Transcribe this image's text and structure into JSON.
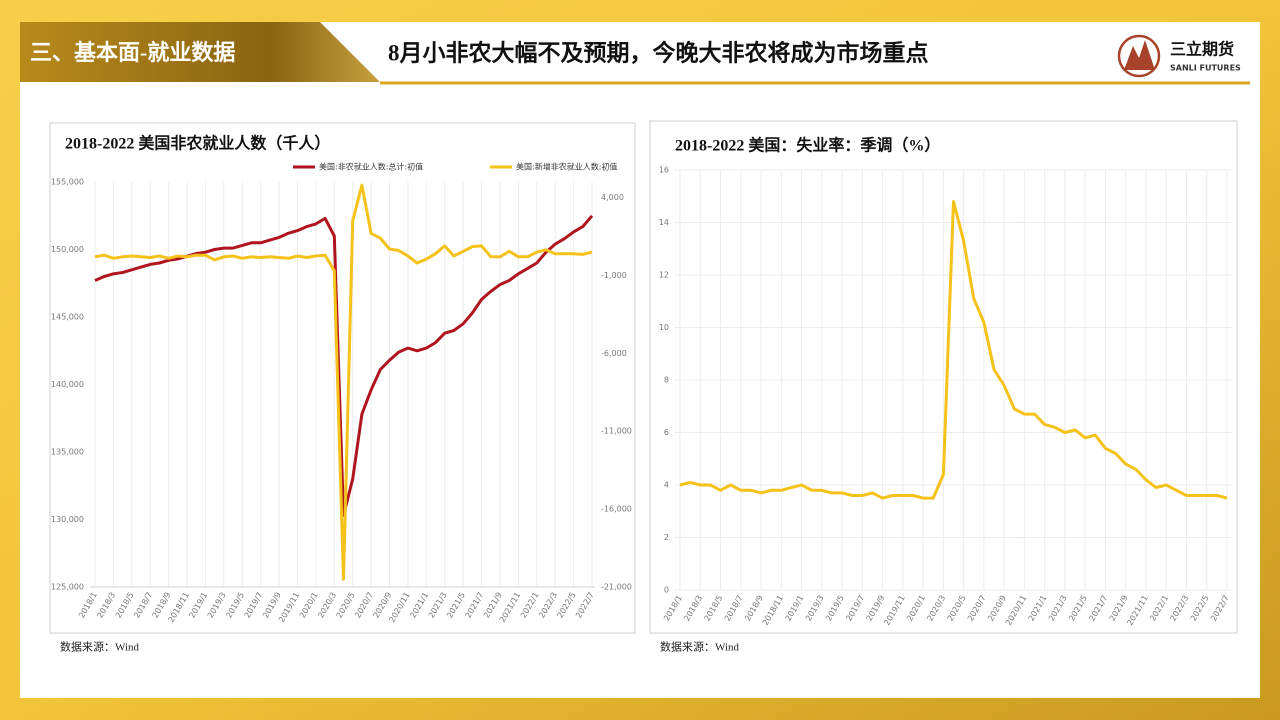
{
  "header": {
    "section": "三、基本面-就业数据",
    "title": "8月小非农大幅不及预期，今晚大非农将成为市场重点",
    "logo": "三立期货",
    "logo_en": "SANLI FUTURES"
  },
  "chart_data": [
    {
      "type": "line",
      "title": "2018-2022 美国非农就业人数（千人）",
      "source": "数据来源：Wind",
      "grid": [
        "x"
      ],
      "categories": [
        "2018/1",
        null,
        "2018/3",
        null,
        "2018/5",
        null,
        "2018/7",
        null,
        "2018/9",
        null,
        "2018/11",
        null,
        "2019/1",
        null,
        "2019/3",
        null,
        "2019/5",
        null,
        "2019/7",
        null,
        "2019/9",
        null,
        "2019/11",
        null,
        "2020/1",
        null,
        "2020/3",
        null,
        "2020/5",
        null,
        "2020/7",
        null,
        "2020/9",
        null,
        "2020/11",
        null,
        "2021/1",
        null,
        "2021/3",
        null,
        "2021/5",
        null,
        "2021/7",
        null,
        "2021/9",
        null,
        "2021/11",
        null,
        "2022/1",
        null,
        "2022/3",
        null,
        "2022/5",
        null,
        "2022/7"
      ],
      "ylim": [
        125000,
        155000
      ],
      "yticks": [
        {
          "value": 125000,
          "label": "125,000"
        },
        {
          "value": 130000,
          "label": "130,000"
        },
        {
          "value": 135000,
          "label": "135,000"
        },
        {
          "value": 140000,
          "label": "140,000"
        },
        {
          "value": 145000,
          "label": "145,000"
        },
        {
          "value": 150000,
          "label": "150,000"
        },
        {
          "value": 155000,
          "label": "155,000"
        }
      ],
      "y2lim": [
        -21000,
        5000
      ],
      "y2ticks": [
        {
          "value": -21000,
          "label": "-21,000"
        },
        {
          "value": -16000,
          "label": "-16,000"
        },
        {
          "value": -11000,
          "label": "-11,000"
        },
        {
          "value": -6000,
          "label": "-6,000"
        },
        {
          "value": -1000,
          "label": "-1,000"
        },
        {
          "value": 4000,
          "label": "4,000"
        }
      ],
      "series": [
        {
          "name": "美国:非农就业人数:总计:初值",
          "color": "#b0141e",
          "values": [
            147700,
            148000,
            148200,
            148300,
            148500,
            148700,
            148900,
            149000,
            149200,
            149300,
            149500,
            149700,
            149800,
            150000,
            150100,
            150100,
            150300,
            150500,
            150500,
            150700,
            150900,
            151200,
            151400,
            151700,
            151900,
            152300,
            151000,
            130300,
            133000,
            137800,
            139600,
            141100,
            141800,
            142400,
            142700,
            142500,
            142700,
            143100,
            143800,
            144000,
            144500,
            145300,
            146300,
            146900,
            147400,
            147700,
            148200,
            148600,
            149000,
            149800,
            150400,
            150800,
            151300,
            151700,
            152500
          ]
        },
        {
          "name": "美国:新增非农就业人数:初值",
          "color": "#f5c21b",
          "axis": "y2",
          "values": [
            200,
            300,
            100,
            200,
            250,
            200,
            150,
            250,
            100,
            250,
            200,
            300,
            300,
            0,
            200,
            250,
            100,
            200,
            150,
            200,
            150,
            100,
            250,
            150,
            250,
            300,
            -700,
            -20500,
            2500,
            4800,
            1700,
            1400,
            700,
            600,
            250,
            -200,
            50,
            400,
            900,
            250,
            550,
            850,
            900,
            200,
            200,
            550,
            200,
            200,
            500,
            650,
            400,
            400,
            400,
            350,
            500
          ]
        }
      ]
    },
    {
      "type": "line",
      "title": "2018-2022 美国：失业率：季调（%）",
      "source": "数据来源：Wind",
      "grid": [
        "x",
        "y"
      ],
      "categories": [
        "2018/1",
        null,
        "2018/3",
        null,
        "2018/5",
        null,
        "2018/7",
        null,
        "2018/9",
        null,
        "2018/11",
        null,
        "2019/1",
        null,
        "2019/3",
        null,
        "2019/5",
        null,
        "2019/7",
        null,
        "2019/9",
        null,
        "2019/11",
        null,
        "2020/1",
        null,
        "2020/3",
        null,
        "2020/5",
        null,
        "2020/7",
        null,
        "2020/9",
        null,
        "2020/11",
        null,
        "2021/1",
        null,
        "2021/3",
        null,
        "2021/5",
        null,
        "2021/7",
        null,
        "2021/9",
        null,
        "2021/11",
        null,
        "2022/1",
        null,
        "2022/3",
        null,
        "2022/5",
        null,
        "2022/7"
      ],
      "ylim": [
        0,
        16
      ],
      "yticks": [
        0,
        2,
        4,
        6,
        8,
        10,
        12,
        14,
        16
      ],
      "series": [
        {
          "color": "#f5c21b",
          "values": [
            4.0,
            4.1,
            4.0,
            4.0,
            3.8,
            4.0,
            3.8,
            3.8,
            3.7,
            3.8,
            3.8,
            3.9,
            4.0,
            3.8,
            3.8,
            3.7,
            3.7,
            3.6,
            3.6,
            3.7,
            3.5,
            3.6,
            3.6,
            3.6,
            3.5,
            3.5,
            4.4,
            14.8,
            13.3,
            11.1,
            10.2,
            8.4,
            7.8,
            6.9,
            6.7,
            6.7,
            6.3,
            6.2,
            6.0,
            6.1,
            5.8,
            5.9,
            5.4,
            5.2,
            4.8,
            4.6,
            4.2,
            3.9,
            4.0,
            3.8,
            3.6,
            3.6,
            3.6,
            3.6,
            3.5
          ]
        }
      ]
    }
  ]
}
